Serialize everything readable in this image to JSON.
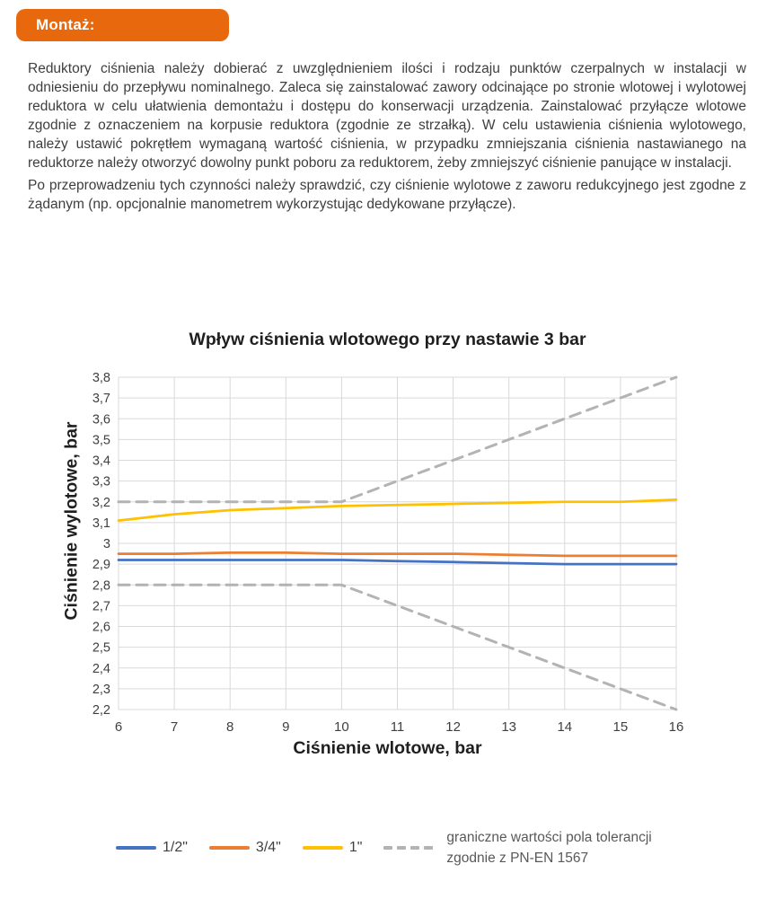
{
  "badge": {
    "label": "Montaż:",
    "color": "#E8680E"
  },
  "paragraphs": {
    "p1": "Reduktory ciśnienia należy dobierać z uwzględnieniem ilości i rodzaju punktów czerpalnych w instalacji w odniesieniu do przepływu nominalnego. Zaleca się zainstalować zawory odcinające po stronie wlotowej i wylotowej reduktora w celu ułatwienia demontażu i dostępu do konserwacji urządzenia. Zainstalować przyłącze wlotowe zgodnie z oznaczeniem na korpusie reduktora (zgodnie ze strzałką). W celu ustawienia ciśnienia wylotowego, należy ustawić pokrętłem wymaganą wartość ciśnienia, w przypadku zmniejszania ciśnienia nastawianego na reduktorze należy otworzyć dowolny punkt poboru za reduktorem, żeby zmniejszyć ciśnienie panujące w instalacji.",
    "p2": "Po przeprowadzeniu tych czynności należy sprawdzić, czy ciśnienie wylotowe z zaworu redukcyjnego jest zgodne z żądanym (np. opcjonalnie manometrem wykorzystując dedykowane przyłącze)."
  },
  "chart_data": {
    "type": "line",
    "title": "Wpływ ciśnienia wlotowego przy nastawie 3 bar",
    "xlabel": "Ciśnienie wlotowe, bar",
    "ylabel": "Ciśnienie wylotowe, bar",
    "x": [
      6,
      7,
      8,
      9,
      10,
      11,
      12,
      13,
      14,
      15,
      16
    ],
    "xlim": [
      6,
      16
    ],
    "ylim": [
      2.2,
      3.8
    ],
    "xtick_step": 1,
    "ytick_step": 0.1,
    "decimal_separator": ",",
    "grid": true,
    "grid_color": "#D9D9D9",
    "tick_color": "#404040",
    "series": [
      {
        "name": "1/2\"",
        "color": "#4472C4",
        "dash": false,
        "values": [
          2.92,
          2.92,
          2.92,
          2.92,
          2.92,
          2.915,
          2.91,
          2.905,
          2.9,
          2.9,
          2.9
        ]
      },
      {
        "name": "3/4\"",
        "color": "#ED7D31",
        "dash": false,
        "values": [
          2.95,
          2.95,
          2.955,
          2.955,
          2.95,
          2.95,
          2.95,
          2.945,
          2.94,
          2.94,
          2.94
        ]
      },
      {
        "name": "1\"",
        "color": "#FFC000",
        "dash": false,
        "values": [
          3.11,
          3.14,
          3.16,
          3.17,
          3.18,
          3.185,
          3.19,
          3.195,
          3.2,
          3.2,
          3.21
        ]
      },
      {
        "name": "graniczne wartości pola tolerancji - górna",
        "color": "#B3B3B3",
        "dash": true,
        "values": [
          3.2,
          3.2,
          3.2,
          3.2,
          3.2,
          3.3,
          3.4,
          3.5,
          3.6,
          3.7,
          3.8
        ]
      },
      {
        "name": "graniczne wartości pola tolerancji - dolna",
        "color": "#B3B3B3",
        "dash": true,
        "values": [
          2.8,
          2.8,
          2.8,
          2.8,
          2.8,
          2.7,
          2.6,
          2.5,
          2.4,
          2.3,
          2.2
        ]
      }
    ],
    "legend": {
      "position": "bottom",
      "items": [
        {
          "label": "1/2\"",
          "color": "#4472C4",
          "dash": false
        },
        {
          "label": "3/4\"",
          "color": "#ED7D31",
          "dash": false
        },
        {
          "label": "1\"",
          "color": "#FFC000",
          "dash": false
        }
      ],
      "tolerance": {
        "color": "#B3B3B3",
        "line1": "graniczne wartości pola tolerancji",
        "line2": "zgodnie z PN-EN 1567"
      }
    }
  }
}
